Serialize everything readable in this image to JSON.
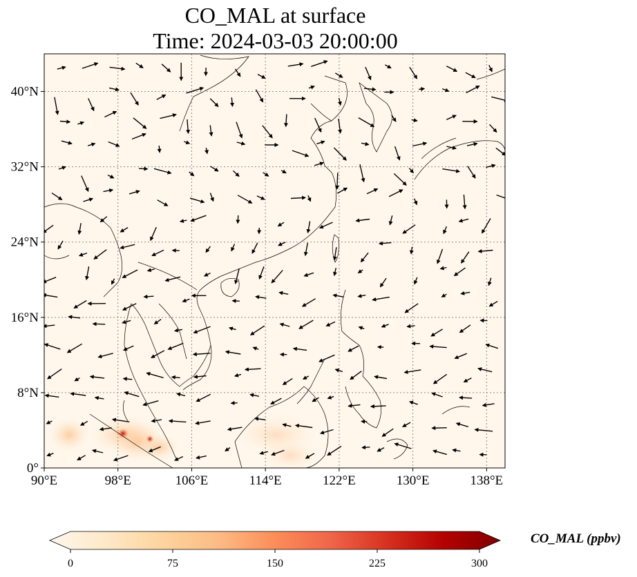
{
  "title": {
    "line1": "CO_MAL at surface",
    "line2": "Time: 2024-03-03 20:00:00"
  },
  "map": {
    "lon_range": [
      90,
      140
    ],
    "lat_range": [
      0,
      44
    ],
    "lon_ticks": [
      {
        "value": 90,
        "label": "90°E"
      },
      {
        "value": 98,
        "label": "98°E"
      },
      {
        "value": 106,
        "label": "106°E"
      },
      {
        "value": 114,
        "label": "114°E"
      },
      {
        "value": 122,
        "label": "122°E"
      },
      {
        "value": 130,
        "label": "130°E"
      },
      {
        "value": 138,
        "label": "138°E"
      }
    ],
    "lat_ticks": [
      {
        "value": 0,
        "label": "0°"
      },
      {
        "value": 8,
        "label": "8°N"
      },
      {
        "value": 16,
        "label": "16°N"
      },
      {
        "value": 24,
        "label": "24°N"
      },
      {
        "value": 32,
        "label": "32°N"
      },
      {
        "value": 40,
        "label": "40°N"
      }
    ],
    "gridlines": true,
    "background_color": "#fff7ec",
    "hotspot_color": "#b30000"
  },
  "colorbar": {
    "label": "CO_MAL (ppbv)",
    "min": 0,
    "max": 300,
    "ticks": [
      {
        "value": 0,
        "label": "0"
      },
      {
        "value": 75,
        "label": "75"
      },
      {
        "value": 150,
        "label": "150"
      },
      {
        "value": 225,
        "label": "225"
      },
      {
        "value": 300,
        "label": "300"
      }
    ],
    "colors": [
      "#fff7ec",
      "#fee8c8",
      "#fdd49e",
      "#fdbb84",
      "#fc8d59",
      "#ef6548",
      "#d7301f",
      "#b30000",
      "#7f0000"
    ],
    "extend": "both"
  }
}
